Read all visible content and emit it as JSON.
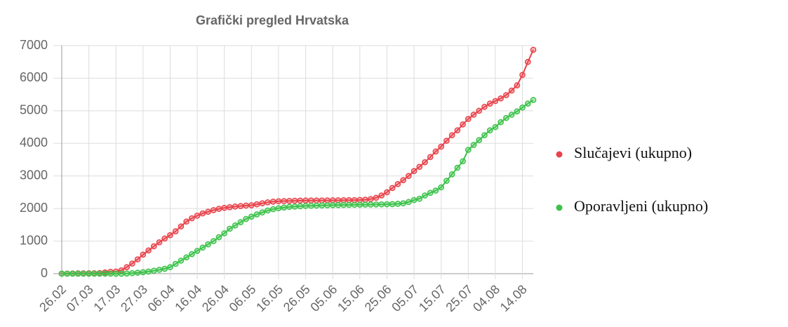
{
  "chart_data": {
    "type": "line",
    "title": "Grafički pregled Hrvatska",
    "categories": [
      "26.02",
      null,
      null,
      null,
      null,
      "07.03",
      null,
      null,
      null,
      null,
      "17.03",
      null,
      null,
      null,
      null,
      "27.03",
      null,
      null,
      null,
      null,
      "06.04",
      null,
      null,
      null,
      null,
      "16.04",
      null,
      null,
      null,
      null,
      "26.04",
      null,
      null,
      null,
      null,
      "06.05",
      null,
      null,
      null,
      null,
      "16.05",
      null,
      null,
      null,
      null,
      "26.05",
      null,
      null,
      null,
      null,
      "05.06",
      null,
      null,
      null,
      null,
      "15.06",
      null,
      null,
      null,
      null,
      "25.06",
      null,
      null,
      null,
      null,
      "05.07",
      null,
      null,
      null,
      null,
      "15.07",
      null,
      null,
      null,
      null,
      "25.07",
      null,
      null,
      null,
      null,
      "04.08",
      null,
      null,
      null,
      null,
      "14.08",
      null,
      null
    ],
    "series": [
      {
        "name": "Slučajevi (ukupno)",
        "color": "#e8434b",
        "values": [
          1,
          3,
          7,
          10,
          12,
          12,
          13,
          19,
          38,
          57,
          65,
          100,
          200,
          310,
          440,
          586,
          713,
          840,
          963,
          1079,
          1182,
          1300,
          1450,
          1600,
          1700,
          1780,
          1850,
          1900,
          1950,
          1990,
          2020,
          2040,
          2060,
          2075,
          2090,
          2100,
          2130,
          2160,
          2190,
          2210,
          2222,
          2228,
          2232,
          2238,
          2243,
          2245,
          2246,
          2247,
          2247,
          2249,
          2250,
          2252,
          2254,
          2256,
          2258,
          2262,
          2270,
          2290,
          2330,
          2400,
          2500,
          2630,
          2750,
          2870,
          3000,
          3150,
          3280,
          3420,
          3580,
          3750,
          3900,
          4080,
          4250,
          4400,
          4580,
          4750,
          4880,
          5000,
          5120,
          5220,
          5300,
          5380,
          5480,
          5620,
          5780,
          6100,
          6500,
          6870
        ]
      },
      {
        "name": "Oporavljeni (ukupno)",
        "color": "#3cc24a",
        "values": [
          0,
          0,
          0,
          0,
          0,
          0,
          0,
          0,
          0,
          0,
          0,
          0,
          5,
          15,
          30,
          45,
          65,
          90,
          120,
          150,
          200,
          300,
          400,
          500,
          600,
          700,
          800,
          900,
          1000,
          1120,
          1240,
          1380,
          1480,
          1580,
          1680,
          1750,
          1820,
          1880,
          1940,
          1980,
          2010,
          2030,
          2050,
          2060,
          2070,
          2080,
          2085,
          2090,
          2095,
          2100,
          2105,
          2108,
          2110,
          2112,
          2115,
          2118,
          2120,
          2122,
          2125,
          2128,
          2130,
          2135,
          2145,
          2160,
          2200,
          2260,
          2300,
          2400,
          2480,
          2550,
          2650,
          2850,
          3050,
          3250,
          3450,
          3800,
          3950,
          4100,
          4250,
          4400,
          4500,
          4650,
          4780,
          4880,
          4980,
          5100,
          5220,
          5330
        ]
      }
    ],
    "ylim": [
      0,
      7000
    ],
    "yticks": [
      0,
      1000,
      2000,
      3000,
      4000,
      5000,
      6000,
      7000
    ],
    "grid": true,
    "legend": "right"
  }
}
